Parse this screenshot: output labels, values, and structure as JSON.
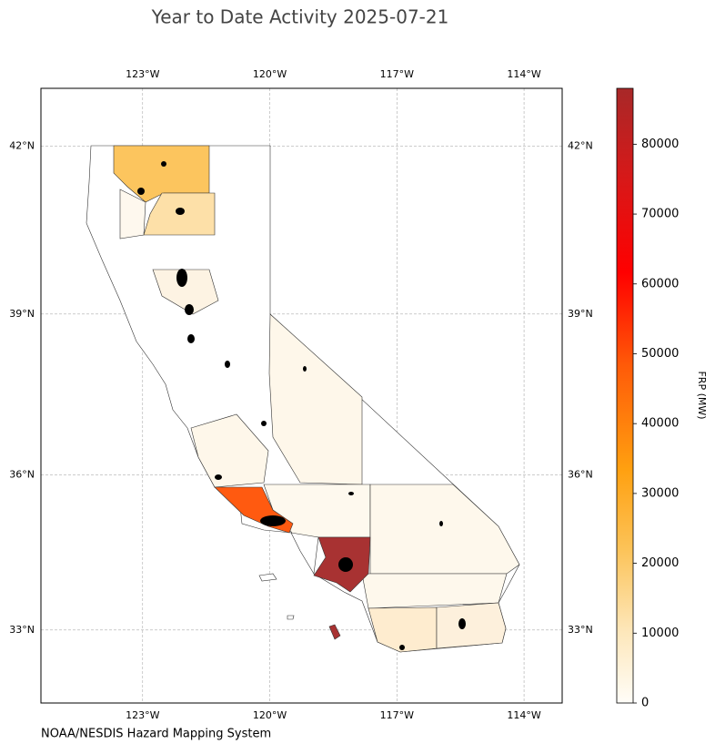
{
  "title": "Year to Date Activity 2025-07-21",
  "footer": "NOAA/NESDIS Hazard Mapping System",
  "map": {
    "projection": "mercator",
    "xlim": [
      -125.4,
      -113.1
    ],
    "ylim": [
      31.55,
      43.0
    ],
    "grid": true,
    "xticks": [
      {
        "value": -123,
        "label": "123°W"
      },
      {
        "value": -120,
        "label": "120°W"
      },
      {
        "value": -117,
        "label": "117°W"
      },
      {
        "value": -114,
        "label": "114°W"
      }
    ],
    "yticks": [
      {
        "value": 42,
        "label": "42°N"
      },
      {
        "value": 39,
        "label": "39°N"
      },
      {
        "value": 36,
        "label": "36°N"
      },
      {
        "value": 33,
        "label": "33°N"
      }
    ]
  },
  "colorbar": {
    "label": "FRP (MW)",
    "lim": [
      0,
      88000
    ],
    "ticks": [
      0,
      10000,
      20000,
      30000,
      40000,
      50000,
      60000,
      70000,
      80000
    ]
  }
}
